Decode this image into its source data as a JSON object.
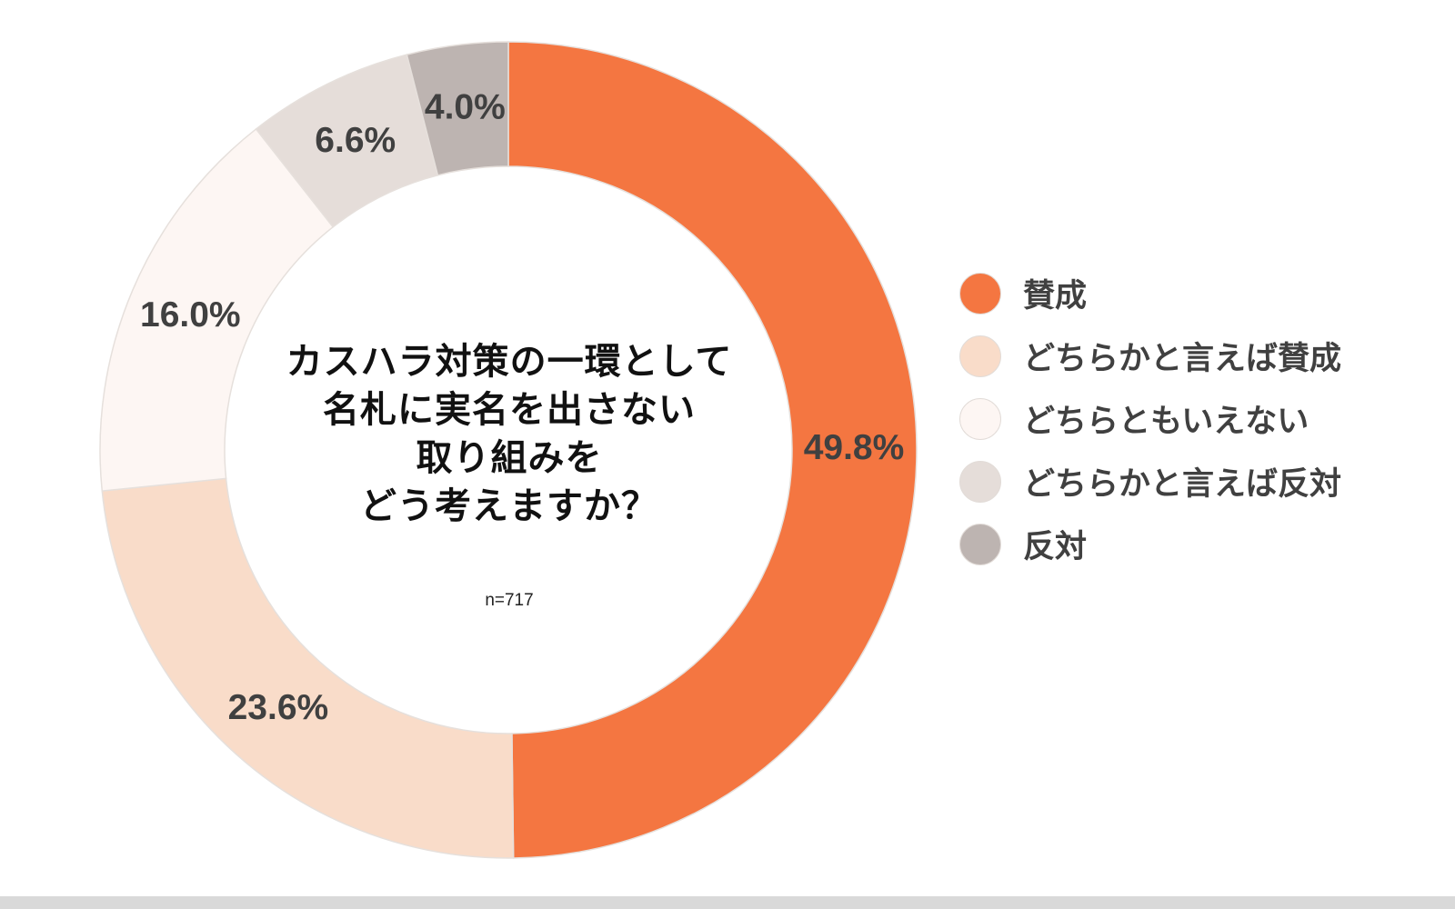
{
  "chart_data": {
    "type": "pie",
    "donut": true,
    "title_lines": [
      "カスハラ対策の一環として",
      "名札に実名を出さない",
      "取り組みを",
      "どう考えますか？"
    ],
    "sample_size": "n=717",
    "legend_position": "right",
    "categories": [
      "賛成",
      "どちらかと言えば賛成",
      "どちらともいえない",
      "どちらかと言えば反対",
      "反対"
    ],
    "values": [
      49.8,
      23.6,
      16.0,
      6.6,
      4.0
    ],
    "data_labels": [
      "49.8%",
      "23.6%",
      "16.0%",
      "6.6%",
      "4.0%"
    ],
    "colors": [
      "#f47641",
      "#f9dcc9",
      "#fdf6f3",
      "#e5ddd9",
      "#bdb4b1"
    ]
  }
}
